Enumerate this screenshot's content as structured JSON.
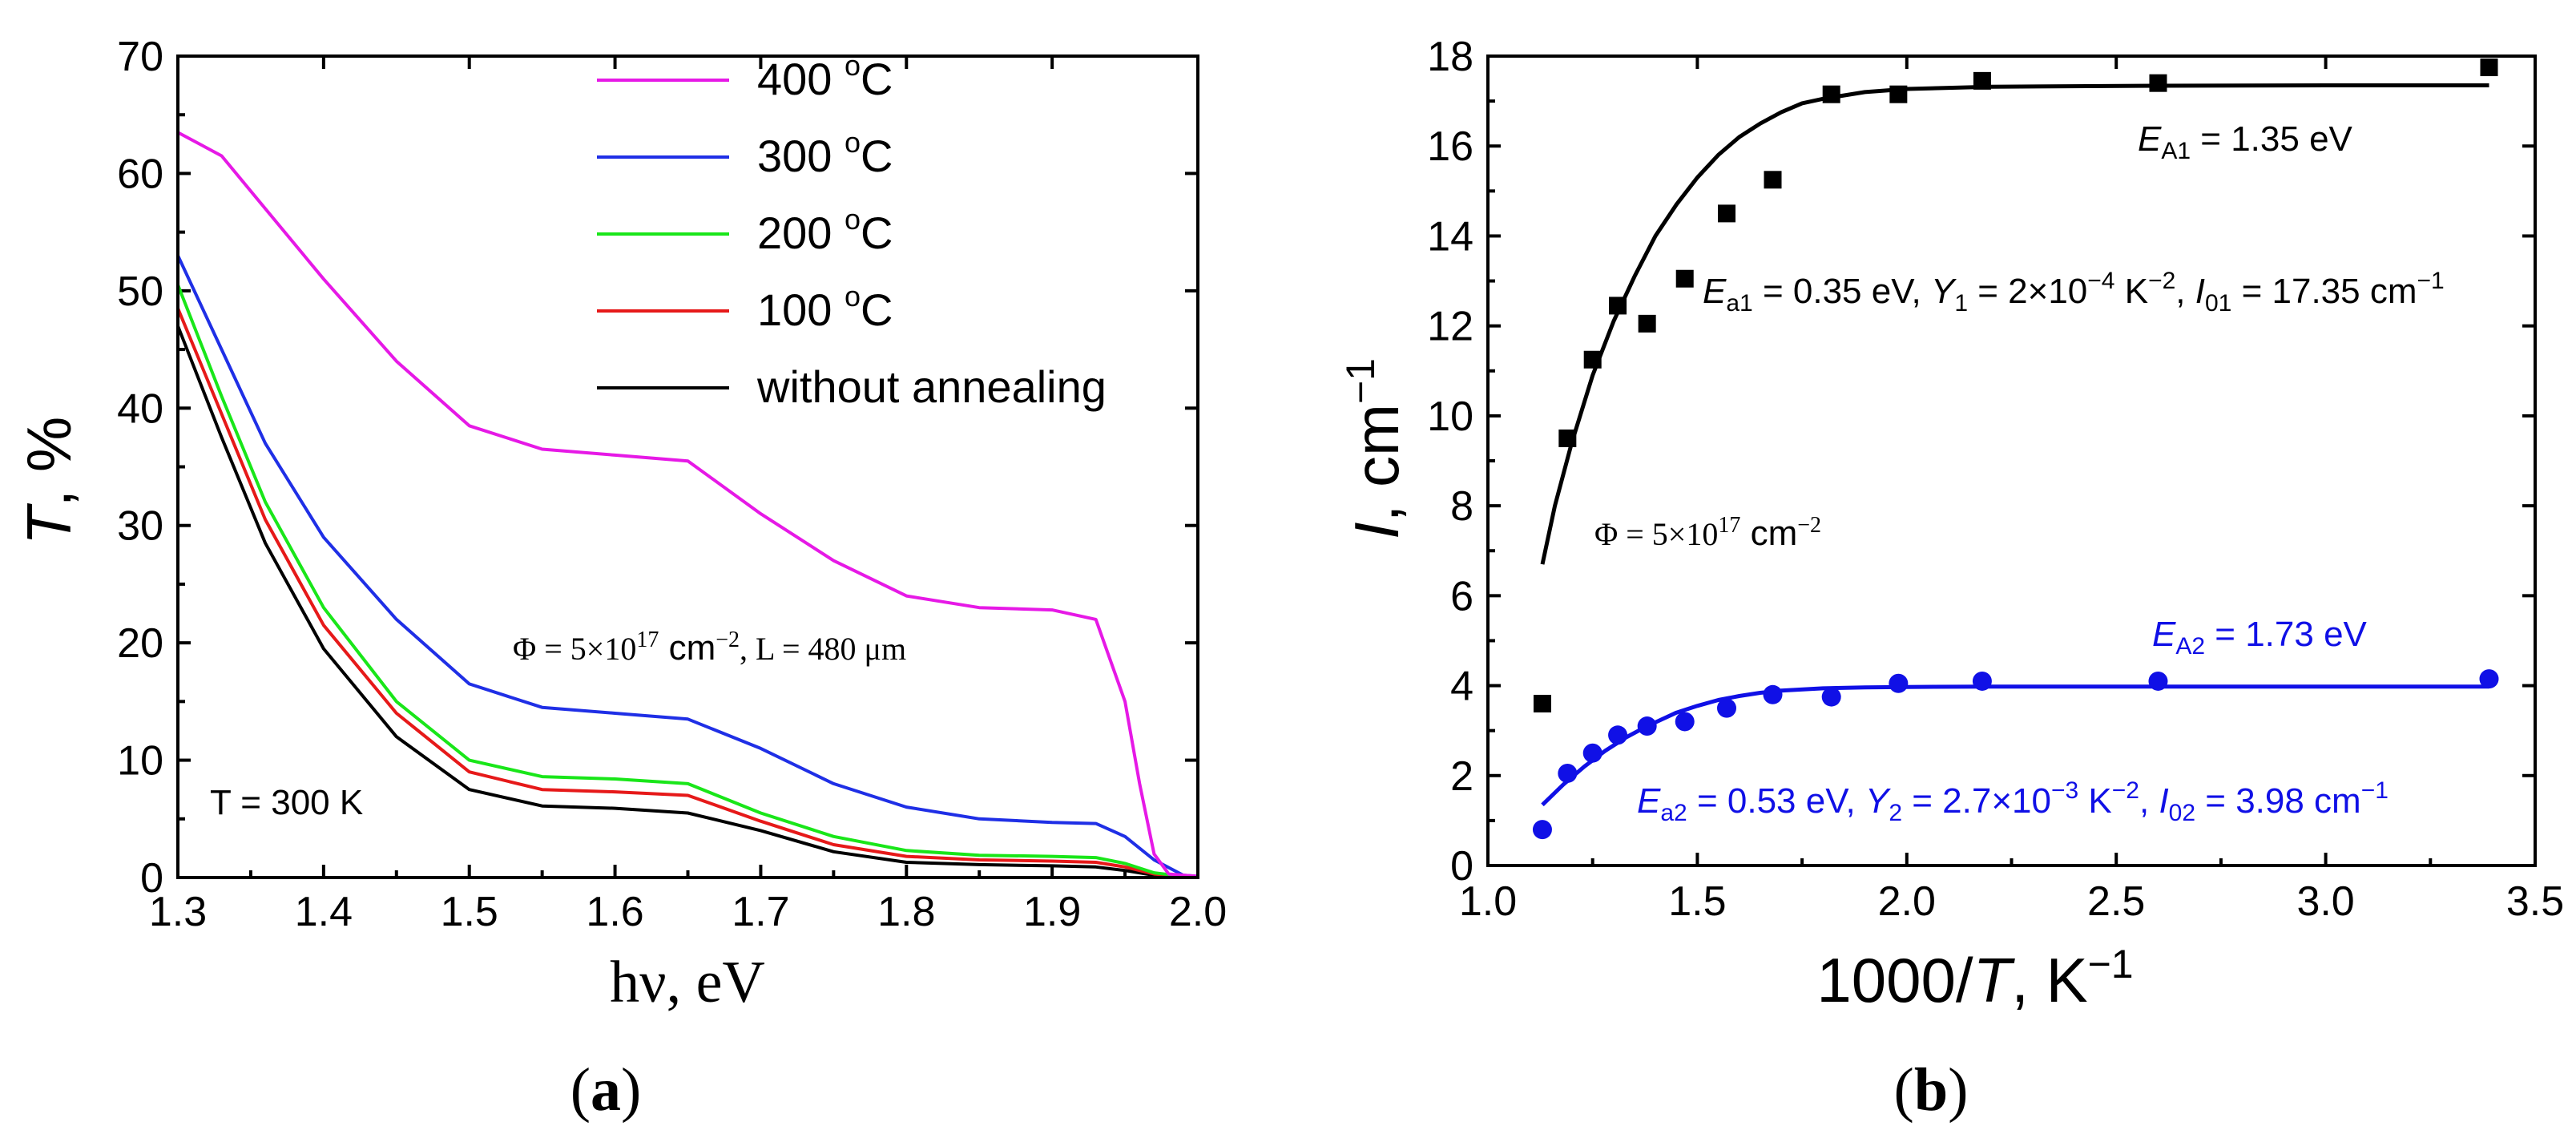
{
  "chart_data": [
    {
      "type": "line",
      "panel_label": "(a)",
      "xlabel": "hν, eV",
      "ylabel_italic": "T",
      "ylabel_rest": ", %",
      "xlim": [
        1.3,
        2.0
      ],
      "ylim": [
        0,
        70
      ],
      "xticks": [
        "1.3",
        "1.4",
        "1.5",
        "1.6",
        "1.7",
        "1.8",
        "1.9",
        "2.0"
      ],
      "yticks": [
        "0",
        "10",
        "20",
        "30",
        "40",
        "50",
        "60",
        "70"
      ],
      "annotation_main": "Φ = 5×10",
      "annotation_exp": "17",
      "annotation_rest": " cm",
      "annotation_exp2": "−2",
      "annotation_L": ", L = 480 μm",
      "annotation_T": "T = 300 K",
      "series": [
        {
          "name": "400 °C",
          "color": "#e619e6",
          "x": [
            1.3,
            1.33,
            1.36,
            1.4,
            1.45,
            1.5,
            1.55,
            1.6,
            1.65,
            1.7,
            1.75,
            1.8,
            1.85,
            1.9,
            1.93,
            1.95,
            1.96,
            1.97,
            1.98,
            2.0
          ],
          "y": [
            63.5,
            61.5,
            57.0,
            51.0,
            44.0,
            38.5,
            36.5,
            36.0,
            35.5,
            31.0,
            27.0,
            24.0,
            23.0,
            22.8,
            22.0,
            15.0,
            8.0,
            2.0,
            0.3,
            0.1
          ]
        },
        {
          "name": "300 °C",
          "color": "#1f2fe6",
          "x": [
            1.3,
            1.33,
            1.36,
            1.4,
            1.45,
            1.5,
            1.55,
            1.6,
            1.65,
            1.7,
            1.75,
            1.8,
            1.85,
            1.9,
            1.93,
            1.95,
            1.97,
            1.99,
            2.0
          ],
          "y": [
            53.0,
            45.0,
            37.0,
            29.0,
            22.0,
            16.5,
            14.5,
            14.0,
            13.5,
            11.0,
            8.0,
            6.0,
            5.0,
            4.7,
            4.6,
            3.5,
            1.5,
            0.2,
            0.1
          ]
        },
        {
          "name": "200 °C",
          "color": "#19e619",
          "x": [
            1.3,
            1.33,
            1.36,
            1.4,
            1.45,
            1.5,
            1.55,
            1.6,
            1.65,
            1.7,
            1.75,
            1.8,
            1.85,
            1.9,
            1.93,
            1.95,
            1.97,
            1.99,
            2.0
          ],
          "y": [
            50.5,
            41.0,
            32.0,
            23.0,
            15.0,
            10.0,
            8.6,
            8.4,
            8.0,
            5.5,
            3.5,
            2.3,
            1.9,
            1.8,
            1.7,
            1.2,
            0.4,
            0.1,
            0.05
          ]
        },
        {
          "name": "100 °C",
          "color": "#e61919",
          "x": [
            1.3,
            1.33,
            1.36,
            1.4,
            1.45,
            1.5,
            1.55,
            1.6,
            1.65,
            1.7,
            1.75,
            1.8,
            1.85,
            1.9,
            1.93,
            1.95,
            1.97,
            1.99,
            2.0
          ],
          "y": [
            48.5,
            39.5,
            30.5,
            21.5,
            14.0,
            9.0,
            7.5,
            7.3,
            7.0,
            4.8,
            2.8,
            1.8,
            1.5,
            1.4,
            1.3,
            0.9,
            0.3,
            0.1,
            0.05
          ]
        },
        {
          "name": "without annealing",
          "color": "#000000",
          "x": [
            1.3,
            1.33,
            1.36,
            1.4,
            1.45,
            1.5,
            1.55,
            1.6,
            1.65,
            1.7,
            1.75,
            1.8,
            1.85,
            1.9,
            1.93,
            1.95,
            1.97,
            1.99,
            2.0
          ],
          "y": [
            47.0,
            37.5,
            28.5,
            19.5,
            12.0,
            7.5,
            6.1,
            5.9,
            5.5,
            4.0,
            2.2,
            1.3,
            1.1,
            1.0,
            0.9,
            0.6,
            0.2,
            0.05,
            0.0
          ]
        }
      ]
    },
    {
      "type": "scatter",
      "panel_label": "(b)",
      "xlabel_main": "1000/",
      "xlabel_italic": "T",
      "xlabel_rest": ", K",
      "xlabel_exp": "−1",
      "ylabel_italic": "I",
      "ylabel_rest": ", cm",
      "ylabel_exp": "−1",
      "xlim": [
        1.0,
        3.5
      ],
      "ylim": [
        0,
        18
      ],
      "xticks": [
        "1.0",
        "1.5",
        "2.0",
        "2.5",
        "3.0",
        "3.5"
      ],
      "yticks": [
        "0",
        "2",
        "4",
        "6",
        "8",
        "10",
        "12",
        "14",
        "16",
        "18"
      ],
      "annotation_phi": "Φ = 5×10",
      "annotation_phi_exp": "17",
      "annotation_phi_rest": " cm",
      "annotation_phi_exp2": "−2",
      "series": [
        {
          "name": "black-squares",
          "marker": "square",
          "color": "#000000",
          "x": [
            1.13,
            1.19,
            1.25,
            1.31,
            1.38,
            1.47,
            1.57,
            1.68,
            1.82,
            1.98,
            2.18,
            2.6,
            3.39
          ],
          "y": [
            3.6,
            9.5,
            11.25,
            12.45,
            12.05,
            13.05,
            14.5,
            15.25,
            17.15,
            17.15,
            17.45,
            17.4,
            17.75
          ]
        },
        {
          "name": "blue-circles",
          "marker": "circle",
          "color": "#1010e6",
          "x": [
            1.13,
            1.19,
            1.25,
            1.31,
            1.38,
            1.47,
            1.57,
            1.68,
            1.82,
            1.98,
            2.18,
            2.6,
            3.39
          ],
          "y": [
            0.8,
            2.05,
            2.5,
            2.9,
            3.1,
            3.2,
            3.5,
            3.8,
            3.75,
            4.05,
            4.1,
            4.1,
            4.15
          ]
        }
      ],
      "fits": [
        {
          "name": "fit-1",
          "color": "#000000",
          "I0": 17.35,
          "Y": 0.0002,
          "Ea": 0.35,
          "x": [
            1.13,
            1.16,
            1.2,
            1.25,
            1.3,
            1.35,
            1.4,
            1.45,
            1.5,
            1.55,
            1.6,
            1.65,
            1.7,
            1.75,
            1.8,
            1.9,
            2.0,
            2.2,
            2.6,
            3.0,
            3.39
          ],
          "y": [
            6.7,
            8.0,
            9.4,
            10.9,
            12.1,
            13.1,
            14.0,
            14.7,
            15.3,
            15.8,
            16.2,
            16.5,
            16.75,
            16.95,
            17.05,
            17.2,
            17.27,
            17.32,
            17.34,
            17.35,
            17.35
          ]
        },
        {
          "name": "fit-2",
          "color": "#1010e6",
          "I0": 3.98,
          "Y": 0.0027,
          "Ea": 0.53,
          "x": [
            1.13,
            1.18,
            1.23,
            1.28,
            1.33,
            1.38,
            1.45,
            1.5,
            1.55,
            1.6,
            1.65,
            1.7,
            1.8,
            1.9,
            2.0,
            2.2,
            2.6,
            3.0,
            3.39
          ],
          "y": [
            1.35,
            1.8,
            2.2,
            2.55,
            2.85,
            3.1,
            3.4,
            3.55,
            3.68,
            3.77,
            3.84,
            3.89,
            3.94,
            3.96,
            3.97,
            3.98,
            3.98,
            3.98,
            3.98
          ]
        }
      ],
      "labels": {
        "EA1_base": "E",
        "EA1_sub": "A1",
        "EA1_rest": " = 1.35 eV",
        "Ea1_base": "E",
        "Ea1_sub": "a1",
        "Ea1_mid": " = 0.35 eV, ",
        "Y1_base": "Y",
        "Y1_sub": "1",
        "Y1_mid": " = 2×10",
        "Y1_exp": "−4",
        "Y1_unit": " K",
        "Y1_unit_exp": "−2",
        "I01_sep": ", ",
        "I01_base": "I",
        "I01_sub": "01",
        "I01_rest": " = 17.35 cm",
        "I01_exp": "−1",
        "EA2_base": "E",
        "EA2_sub": "A2",
        "EA2_rest": " = 1.73 eV",
        "Ea2_base": "E",
        "Ea2_sub": "a2",
        "Ea2_mid": " = 0.53 eV, ",
        "Y2_base": "Y",
        "Y2_sub": "2",
        "Y2_mid": " = 2.7×10",
        "Y2_exp": "−3",
        "Y2_unit": " K",
        "Y2_unit_exp": "−2",
        "I02_sep": ", ",
        "I02_base": "I",
        "I02_sub": "02",
        "I02_rest": " = 3.98 cm",
        "I02_exp": "−1"
      }
    }
  ],
  "legend_a": [
    {
      "base": "400 ",
      "sup": "o",
      "unit": "C"
    },
    {
      "base": "300 ",
      "sup": "o",
      "unit": "C"
    },
    {
      "base": "200 ",
      "sup": "o",
      "unit": "C"
    },
    {
      "base": "100 ",
      "sup": "o",
      "unit": "C"
    },
    {
      "base": "without annealing",
      "sup": "",
      "unit": ""
    }
  ]
}
